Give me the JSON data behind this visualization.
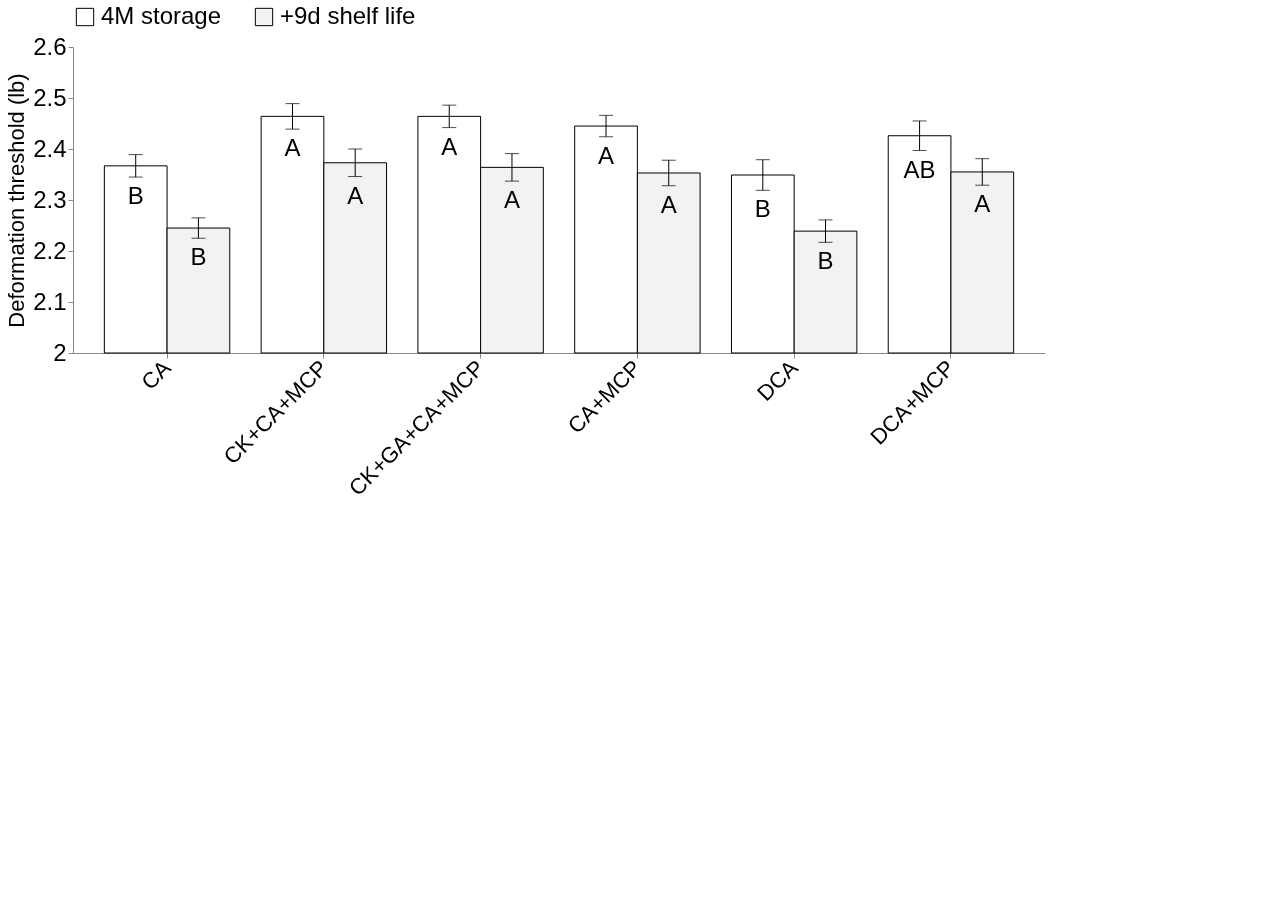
{
  "chart_data": {
    "type": "bar",
    "ylabel": "Deformation threshold (lb)",
    "categories": [
      "CA",
      "CK+CA+MCP",
      "CK+GA+CA+MCP",
      "CA+MCP",
      "DCA",
      "DCA+MCP"
    ],
    "series": [
      {
        "name": "4M storage",
        "color": "#ffffff",
        "values": [
          2.367,
          2.464,
          2.464,
          2.445,
          2.349,
          2.426
        ],
        "errors": [
          0.022,
          0.025,
          0.022,
          0.021,
          0.03,
          0.029
        ],
        "value_labels": [
          "B",
          "A",
          "A",
          "A",
          "B",
          "AB"
        ]
      },
      {
        "name": "+9d shelf life",
        "color": "#f2f2f2",
        "values": [
          2.245,
          2.373,
          2.364,
          2.353,
          2.239,
          2.355
        ],
        "errors": [
          0.02,
          0.027,
          0.027,
          0.025,
          0.022,
          0.026
        ],
        "value_labels": [
          "B",
          "A",
          "A",
          "A",
          "B",
          "A"
        ]
      }
    ],
    "ylim": [
      2,
      2.6
    ],
    "yticks": [
      2,
      2.1,
      2.2,
      2.3,
      2.4,
      2.5,
      2.6
    ],
    "grid": false,
    "legend": "top"
  }
}
